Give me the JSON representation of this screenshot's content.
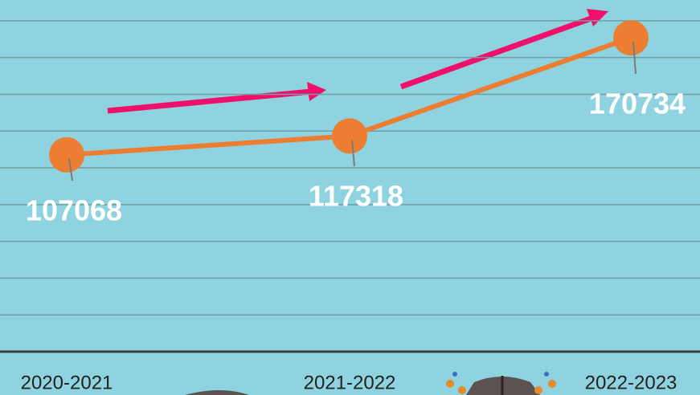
{
  "chart_data": {
    "type": "line",
    "categories": [
      "2020-2021",
      "2021-2022",
      "2022-2023"
    ],
    "series": [
      {
        "color": "#ed7d31",
        "values": [
          107068,
          117318,
          170734
        ]
      }
    ],
    "ylim": [
      0,
      190000
    ],
    "yticks": [
      20000,
      40000,
      60000,
      80000,
      100000,
      120000,
      140000,
      160000,
      180000
    ],
    "grid": true
  }
}
